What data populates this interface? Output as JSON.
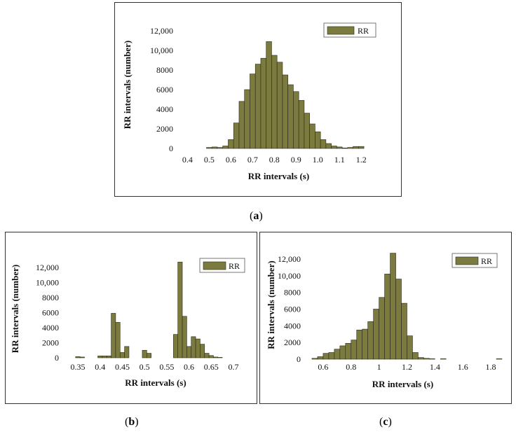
{
  "colors": {
    "bar_fill": "#7b7a3f",
    "bar_edge": "#2b2a14",
    "frame": "#333333"
  },
  "chart_data": [
    {
      "id": "a",
      "type": "bar",
      "panel_label": "a",
      "xlabel": "RR intervals (s)",
      "ylabel": "RR intervals (number)",
      "legend": "RR",
      "legend_position": "top-right",
      "xlim": [
        0.36,
        1.28
      ],
      "ylim": [
        0,
        13000
      ],
      "xticks": [
        0.4,
        0.5,
        0.6,
        0.7,
        0.8,
        0.9,
        1.0,
        1.1,
        1.2
      ],
      "xtick_labels": [
        "0.4",
        "0.5",
        "0.6",
        "0.7",
        "0.8",
        "0.9",
        "1.0",
        "1.1",
        "1.2"
      ],
      "yticks": [
        0,
        2000,
        4000,
        6000,
        8000,
        10000,
        12000
      ],
      "ytick_labels": [
        "0",
        "2000",
        "4000",
        "6000",
        "8000",
        "10,000",
        "12,000"
      ],
      "bin_width": 0.025,
      "bin_start": 0.4625,
      "values": [
        0,
        100,
        150,
        100,
        250,
        900,
        2600,
        4800,
        6000,
        7600,
        8600,
        9200,
        10900,
        9500,
        8800,
        7500,
        6500,
        5800,
        4900,
        3600,
        2500,
        1700,
        900,
        500,
        250,
        150,
        50,
        100,
        200,
        200
      ]
    },
    {
      "id": "b",
      "type": "bar",
      "panel_label": "b",
      "xlabel": "RR intervals (s)",
      "ylabel": "RR intervals (number)",
      "legend": "RR",
      "legend_position": "top-right",
      "xlim": [
        0.32,
        0.73
      ],
      "ylim": [
        0,
        13000
      ],
      "xticks": [
        0.35,
        0.4,
        0.45,
        0.5,
        0.55,
        0.6,
        0.65,
        0.7
      ],
      "xtick_labels": [
        "0.35",
        "0.4",
        "0.45",
        "0.5",
        "0.55",
        "0.6",
        "0.65",
        "0.7"
      ],
      "yticks": [
        0,
        2000,
        4000,
        6000,
        8000,
        10000,
        12000
      ],
      "ytick_labels": [
        "0",
        "2000",
        "4000",
        "6000",
        "8000",
        "10,000",
        "12,000"
      ],
      "bin_width": 0.01,
      "bin_start": 0.345,
      "values": [
        150,
        100,
        0,
        0,
        0,
        250,
        250,
        250,
        5900,
        4700,
        700,
        1500,
        0,
        0,
        0,
        1000,
        600,
        0,
        0,
        0,
        0,
        0,
        3100,
        12700,
        5500,
        1500,
        2800,
        2500,
        1800,
        600,
        300,
        100,
        50
      ]
    },
    {
      "id": "c",
      "type": "bar",
      "panel_label": "c",
      "xlabel": "RR intervals (s)",
      "ylabel": "RR intervals (number)",
      "legend": "RR",
      "legend_position": "top-right",
      "xlim": [
        0.48,
        1.86
      ],
      "ylim": [
        0,
        13000
      ],
      "xticks": [
        0.6,
        0.8,
        1.0,
        1.2,
        1.4,
        1.6,
        1.8
      ],
      "xtick_labels": [
        "0.6",
        "0.8",
        "1",
        "1.2",
        "1.4",
        "1.6",
        "1.8"
      ],
      "yticks": [
        0,
        2000,
        4000,
        6000,
        8000,
        10000,
        12000
      ],
      "ytick_labels": [
        "0",
        "2000",
        "4000",
        "6000",
        "8000",
        "10,000",
        "12,000"
      ],
      "bin_width": 0.04,
      "bin_start": 0.52,
      "values": [
        100,
        300,
        700,
        800,
        1200,
        1600,
        1900,
        2300,
        3500,
        3600,
        4500,
        6000,
        7400,
        10200,
        12700,
        9600,
        6700,
        2800,
        800,
        200,
        100,
        50,
        0,
        50,
        0,
        0,
        0,
        0,
        0,
        0,
        0,
        0,
        0,
        50
      ]
    }
  ]
}
